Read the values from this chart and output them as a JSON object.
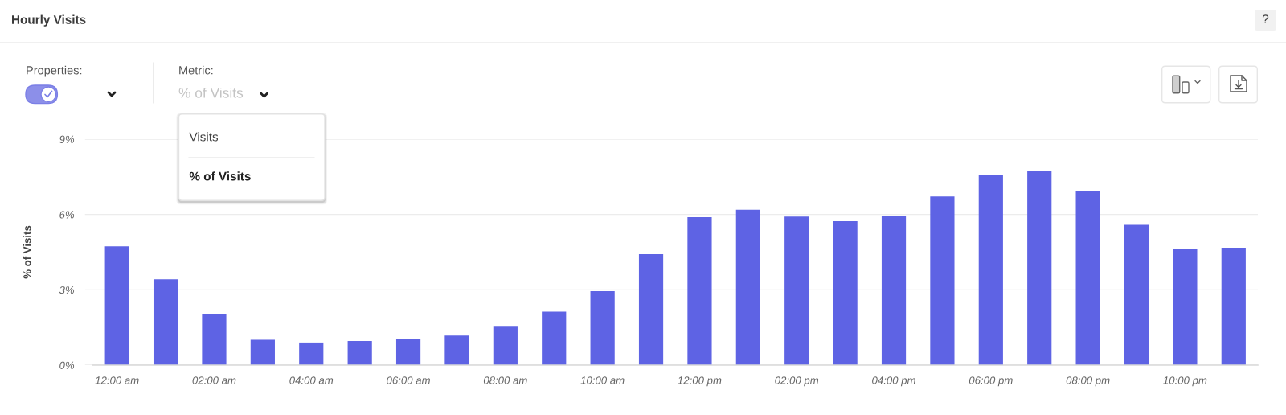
{
  "chart_data": {
    "type": "bar",
    "title": "Hourly Visits",
    "ylabel": "% of Visits",
    "categories": [
      "12:00 am",
      null,
      "02:00 am",
      null,
      "04:00 am",
      null,
      "06:00 am",
      null,
      "08:00 am",
      null,
      "10:00 am",
      null,
      "12:00 pm",
      null,
      "02:00 pm",
      null,
      "04:00 pm",
      null,
      "06:00 pm",
      null,
      "08:00 pm",
      null,
      "10:00 pm",
      null
    ],
    "values": [
      4.73,
      3.42,
      2.03,
      1.01,
      0.9,
      0.96,
      1.05,
      1.18,
      1.56,
      2.13,
      2.95,
      4.42,
      5.89,
      6.19,
      5.92,
      5.73,
      5.94,
      6.72,
      7.57,
      7.72,
      6.95,
      5.59,
      4.61,
      4.68
    ],
    "color": "#5e63e4",
    "ylim": [
      0,
      9
    ],
    "yticks": [
      {
        "value": 0,
        "label": "0%"
      },
      {
        "value": 3,
        "label": "3%"
      },
      {
        "value": 6,
        "label": "6%"
      },
      {
        "value": 9,
        "label": "9%"
      }
    ],
    "grid": "y",
    "annotations": [
      "Properties:",
      "Metric:",
      "% of Visits",
      "Visits",
      "% of Visits",
      "?"
    ]
  }
}
